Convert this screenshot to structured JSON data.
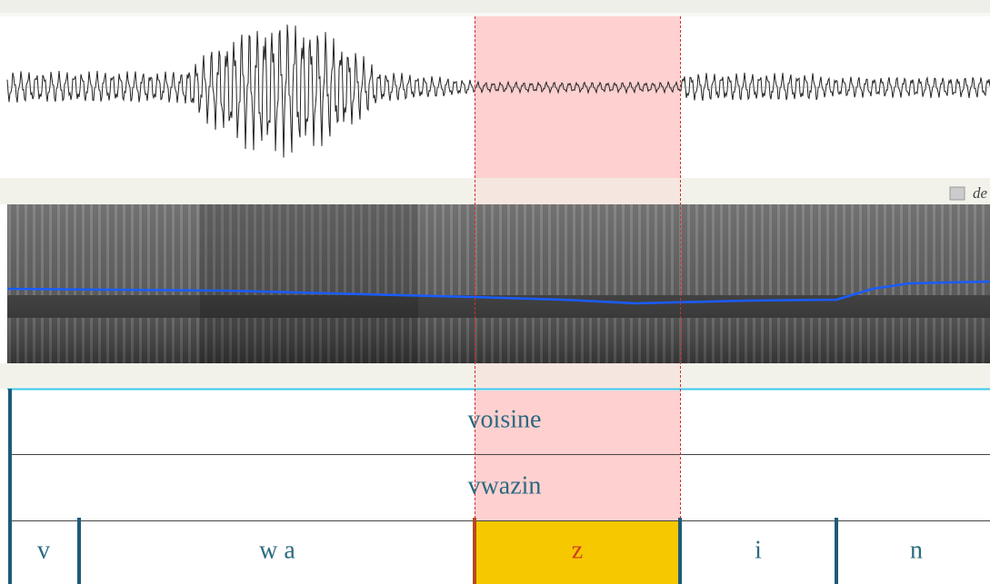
{
  "corner_label": "de",
  "tiers": [
    {
      "intervals": [
        {
          "label": "voisine"
        }
      ]
    },
    {
      "intervals": [
        {
          "label": "vwazin"
        }
      ]
    },
    {
      "intervals": [
        {
          "label": "v"
        },
        {
          "label": "w a"
        },
        {
          "label": "z"
        },
        {
          "label": "i"
        },
        {
          "label": "n"
        }
      ]
    }
  ]
}
